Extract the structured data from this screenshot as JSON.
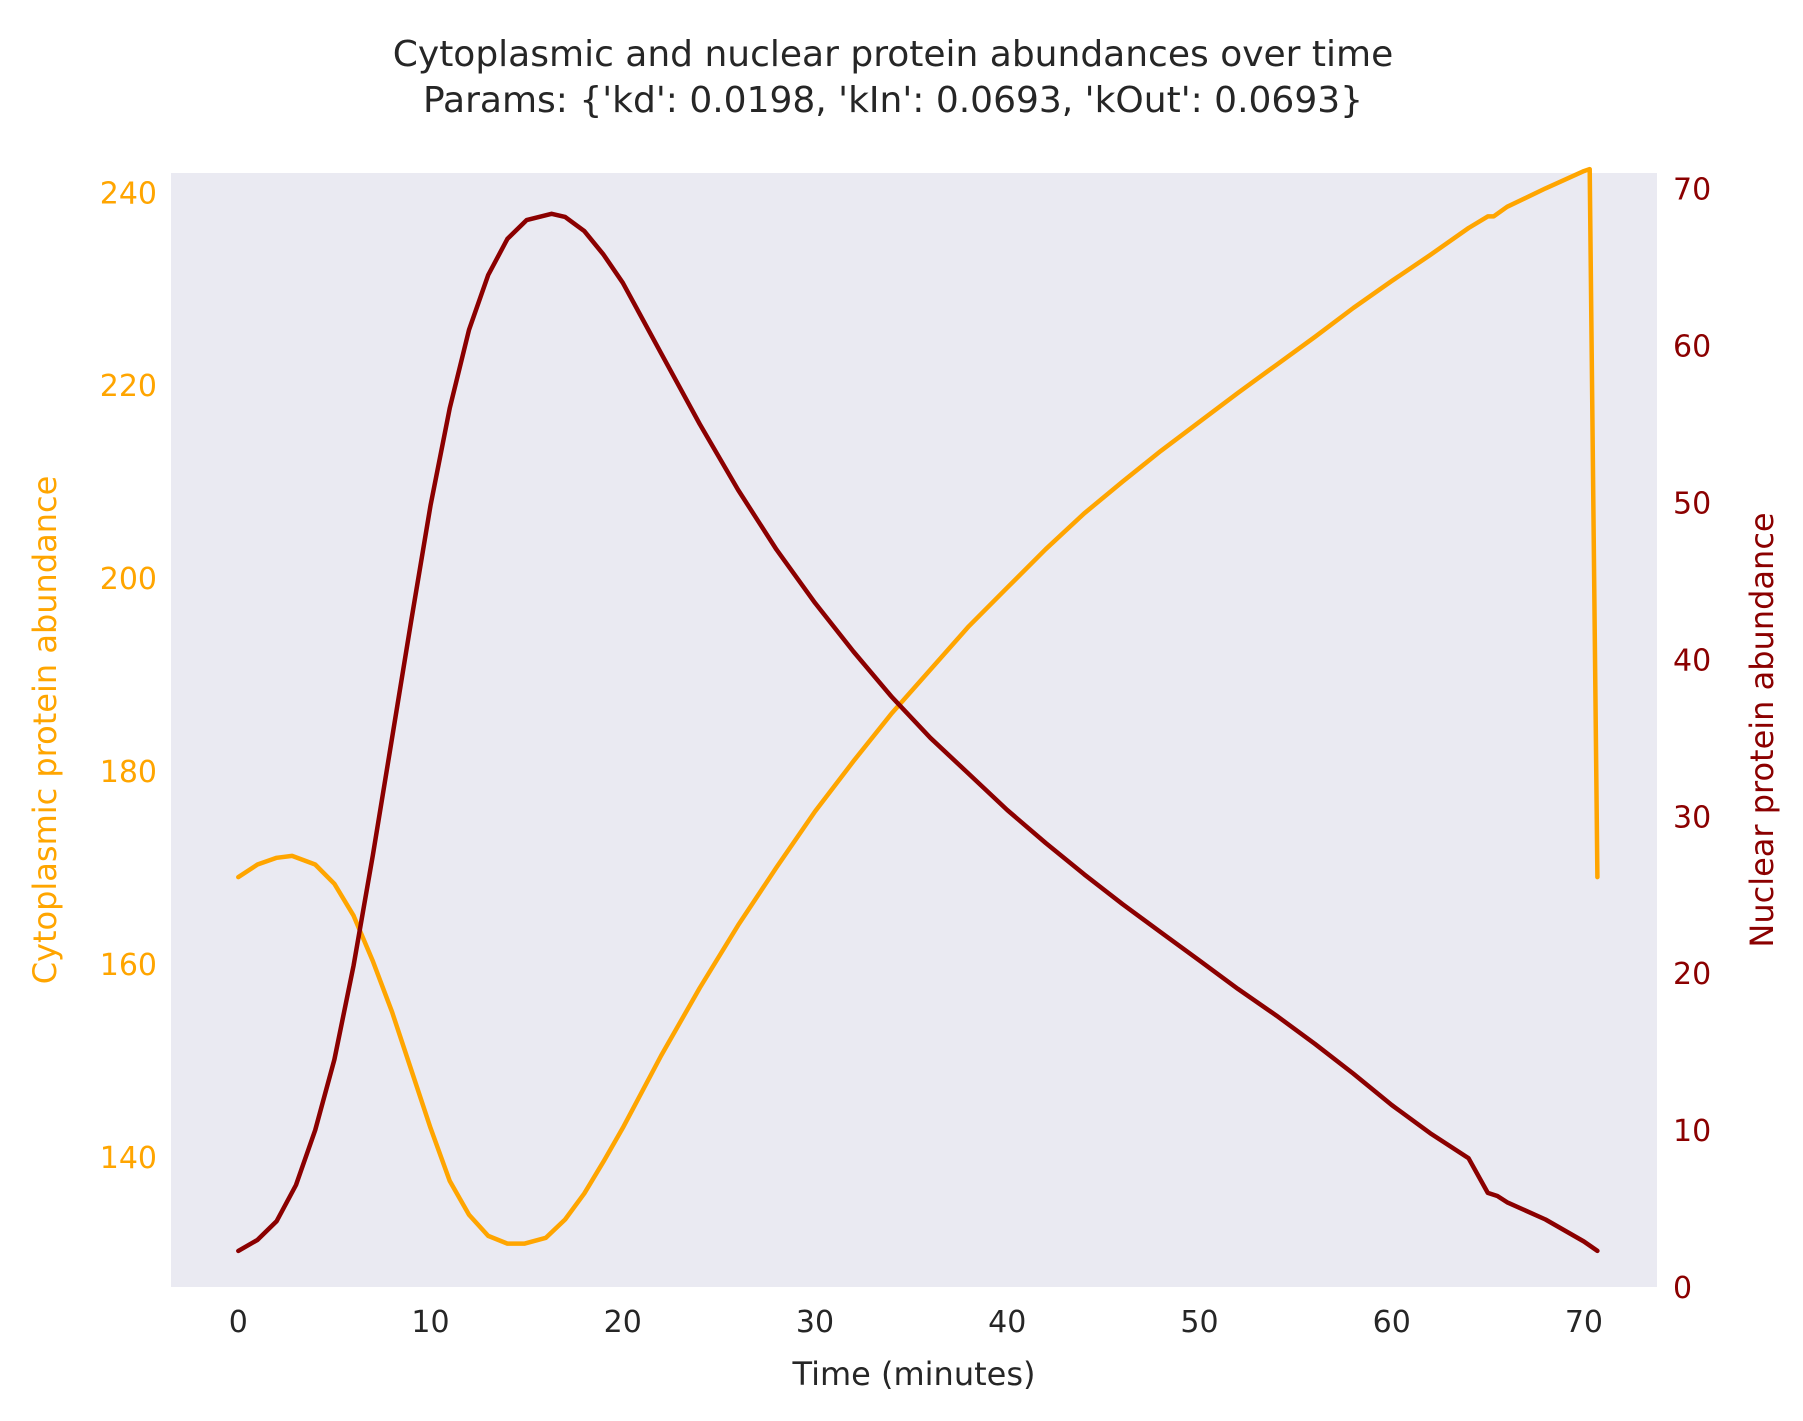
{
  "chart_data": {
    "type": "line",
    "title": "Cytoplasmic and nuclear protein abundances over time",
    "subtitle": "Params: {'kd': 0.0198, 'kIn': 0.0693, 'kOut': 0.0693}",
    "xlabel": "Time (minutes)",
    "ylabel_left": "Cytoplasmic protein abundance",
    "ylabel_right": "Nuclear protein abundance",
    "xlim": [
      -3.5,
      73.8
    ],
    "ylim_left": [
      126.5,
      242
    ],
    "ylim_right": [
      0,
      71
    ],
    "xticks": [
      0,
      10,
      20,
      30,
      40,
      50,
      60,
      70
    ],
    "yticks_left": [
      140,
      160,
      180,
      200,
      220,
      240
    ],
    "yticks_right": [
      0,
      10,
      20,
      30,
      40,
      50,
      60,
      70
    ],
    "grid": false,
    "colors": {
      "cytoplasm": "#ffa500",
      "nucleus": "#8b0000",
      "plot_bg": "#eaeaf2",
      "text": "#262626"
    },
    "series": [
      {
        "axis": "left",
        "x": [
          0,
          1,
          2,
          2.8,
          4,
          5,
          6,
          7,
          8,
          9,
          10,
          11,
          12,
          13,
          14,
          14.9,
          16,
          17,
          18,
          19,
          20,
          22,
          24,
          26,
          28,
          30,
          32,
          34,
          36,
          38,
          40,
          42,
          44,
          46,
          48,
          50,
          52,
          54,
          56,
          58,
          60,
          62,
          64,
          65,
          65.3,
          66,
          68,
          70,
          70.3,
          70.7
        ],
        "values": [
          169,
          170.3,
          171,
          171.2,
          170.3,
          168.3,
          165,
          160.3,
          155,
          149,
          143,
          137.5,
          134,
          131.8,
          131,
          131,
          131.6,
          133.5,
          136.2,
          139.5,
          143,
          150.5,
          157.5,
          164,
          170,
          175.8,
          181,
          186,
          190.5,
          195,
          199,
          203,
          206.7,
          210,
          213.2,
          216.2,
          219.2,
          222.1,
          225,
          228,
          230.8,
          233.5,
          236.3,
          237.5,
          237.5,
          238.5,
          240.4,
          242.2,
          242.4,
          169
        ]
      },
      {
        "axis": "right",
        "x": [
          0,
          1,
          2,
          3,
          4,
          5,
          6,
          7,
          8,
          9,
          10,
          11,
          12,
          13,
          14,
          15,
          16.3,
          17,
          18,
          19,
          20,
          22,
          24,
          26,
          28,
          30,
          32,
          34,
          36,
          38,
          40,
          42,
          44,
          46,
          48,
          50,
          52,
          54,
          56,
          58,
          60,
          62,
          64,
          65,
          65.5,
          66,
          68,
          70,
          70.7
        ],
        "values": [
          2.3,
          3,
          4.2,
          6.5,
          10,
          14.5,
          20.5,
          27.5,
          35,
          42.5,
          49.8,
          56,
          61,
          64.5,
          66.8,
          68,
          68.4,
          68.2,
          67.3,
          65.8,
          64,
          59.5,
          55,
          50.8,
          47,
          43.6,
          40.5,
          37.6,
          35,
          32.7,
          30.4,
          28.3,
          26.3,
          24.4,
          22.6,
          20.8,
          19,
          17.3,
          15.5,
          13.6,
          11.6,
          9.8,
          8.2,
          6,
          5.8,
          5.4,
          4.3,
          2.9,
          2.3
        ]
      }
    ]
  }
}
